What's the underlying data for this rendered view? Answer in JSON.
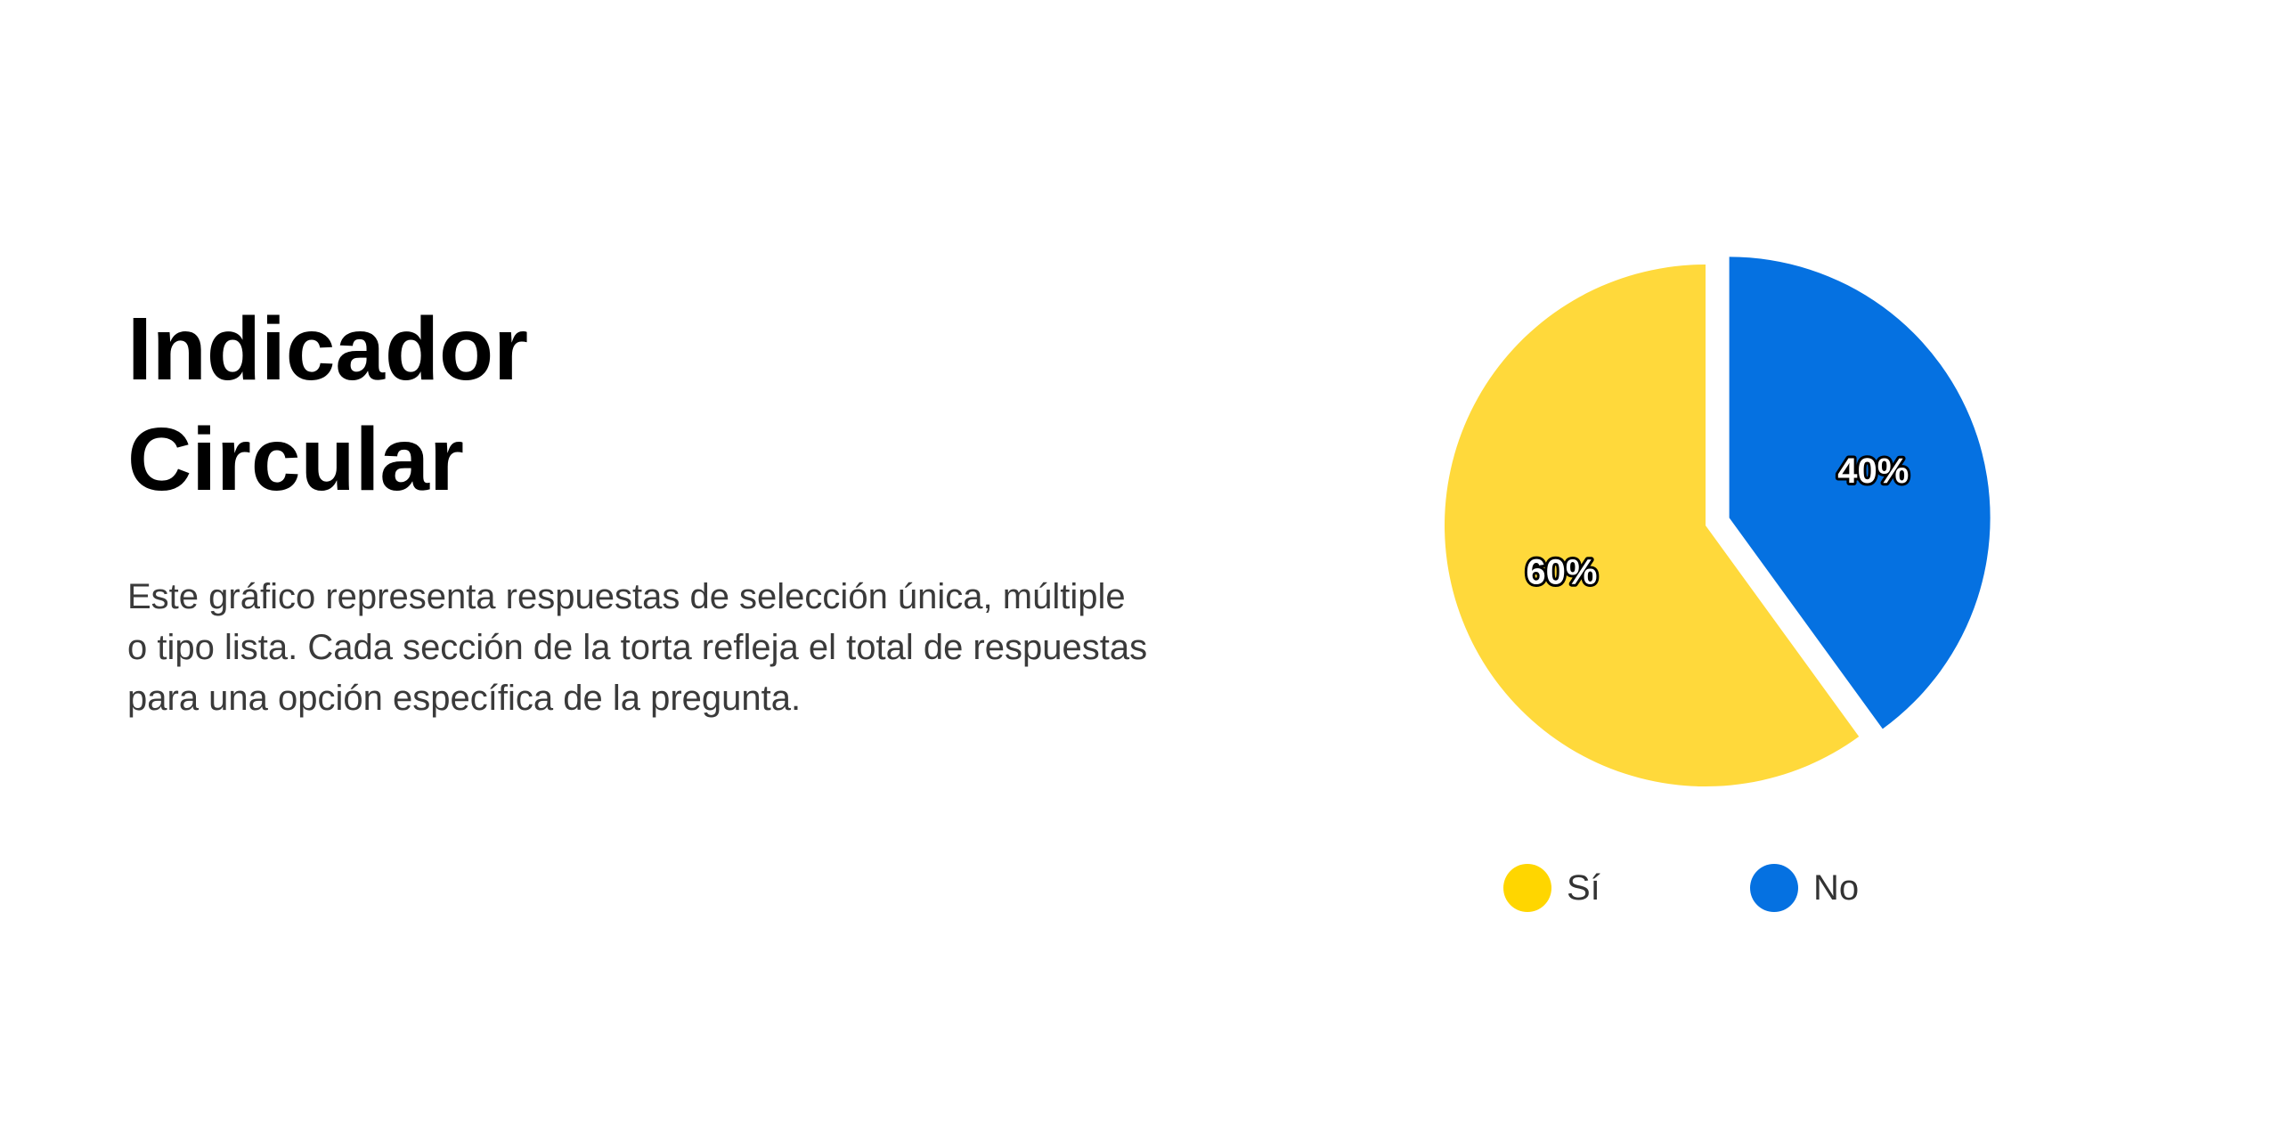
{
  "header": {
    "title_line1": "Indicador",
    "title_line2": "Circular"
  },
  "body": {
    "description": "Este gráfico representa respuestas de selección única, múltiple o tipo lista. Cada sección de la torta refleja el total de respuestas para una opción específica de la pregunta."
  },
  "chart_data": {
    "type": "pie",
    "categories": [
      "Sí",
      "No"
    ],
    "values": [
      60,
      40
    ],
    "labels": [
      "60%",
      "40%"
    ],
    "colors": [
      "#FFD93B",
      "#0571E1"
    ],
    "legend_colors": [
      "#FFD600",
      "#0571E1"
    ],
    "exploded": "No",
    "legend_position": "bottom",
    "start": "top",
    "direction": "counter-clockwise"
  }
}
